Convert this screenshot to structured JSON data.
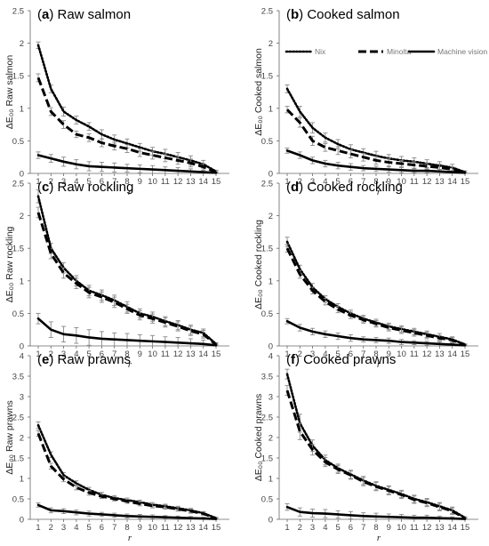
{
  "figure": {
    "xlabel": "r"
  },
  "legend": [
    {
      "name": "Nix",
      "style": "dotted"
    },
    {
      "name": "Minolta",
      "style": "dashed"
    },
    {
      "name": "Machine vision",
      "style": "solid"
    }
  ],
  "chart_data": [
    {
      "type": "line",
      "letter": "a",
      "title_rest": " Raw salmon",
      "ylabel": "ΔE₀₀ Raw salmon",
      "x": [
        1,
        2,
        3,
        4,
        5,
        6,
        7,
        8,
        9,
        10,
        11,
        12,
        13,
        14,
        15
      ],
      "ylim": [
        0,
        2.5
      ],
      "yticks": [
        "0",
        "0.5",
        "1",
        "1.5",
        "2",
        "2.5"
      ],
      "series": [
        {
          "name": "Nix",
          "values": [
            1.97,
            1.3,
            0.95,
            0.82,
            0.72,
            0.6,
            0.52,
            0.46,
            0.4,
            0.34,
            0.3,
            0.25,
            0.2,
            0.14,
            0.03
          ],
          "errors": [
            0.05,
            0.06,
            0.07,
            0.06,
            0.06,
            0.07,
            0.07,
            0.07,
            0.06,
            0.06,
            0.07,
            0.07,
            0.07,
            0.06,
            0.02
          ]
        },
        {
          "name": "Minolta",
          "values": [
            1.47,
            0.95,
            0.75,
            0.6,
            0.55,
            0.47,
            0.42,
            0.38,
            0.32,
            0.28,
            0.24,
            0.2,
            0.16,
            0.1,
            0.02
          ],
          "errors": [
            0.06,
            0.06,
            0.06,
            0.05,
            0.06,
            0.06,
            0.06,
            0.06,
            0.06,
            0.06,
            0.06,
            0.06,
            0.06,
            0.05,
            0.02
          ]
        },
        {
          "name": "Machine vision",
          "values": [
            0.28,
            0.23,
            0.18,
            0.14,
            0.11,
            0.1,
            0.09,
            0.08,
            0.07,
            0.06,
            0.05,
            0.04,
            0.03,
            0.02,
            0.01
          ],
          "errors": [
            0.05,
            0.06,
            0.07,
            0.07,
            0.07,
            0.07,
            0.07,
            0.06,
            0.06,
            0.06,
            0.05,
            0.05,
            0.04,
            0.03,
            0.01
          ]
        }
      ]
    },
    {
      "type": "line",
      "letter": "b",
      "title_rest": " Cooked salmon",
      "ylabel": "ΔE₀₀ Cooked salmon",
      "x": [
        1,
        2,
        3,
        4,
        5,
        6,
        7,
        8,
        9,
        10,
        11,
        12,
        13,
        14,
        15
      ],
      "ylim": [
        0,
        2.5
      ],
      "yticks": [
        "0",
        "0.5",
        "1",
        "1.5",
        "2",
        "2.5"
      ],
      "series": [
        {
          "name": "Nix",
          "values": [
            1.3,
            0.95,
            0.7,
            0.55,
            0.45,
            0.37,
            0.32,
            0.27,
            0.23,
            0.2,
            0.18,
            0.15,
            0.12,
            0.09,
            0.02
          ],
          "errors": [
            0.06,
            0.08,
            0.08,
            0.07,
            0.07,
            0.07,
            0.06,
            0.07,
            0.06,
            0.06,
            0.06,
            0.06,
            0.06,
            0.05,
            0.02
          ]
        },
        {
          "name": "Minolta",
          "values": [
            0.98,
            0.78,
            0.5,
            0.4,
            0.35,
            0.3,
            0.25,
            0.2,
            0.17,
            0.15,
            0.13,
            0.11,
            0.09,
            0.06,
            0.01
          ],
          "errors": [
            0.05,
            0.07,
            0.07,
            0.06,
            0.06,
            0.06,
            0.06,
            0.06,
            0.06,
            0.05,
            0.05,
            0.05,
            0.05,
            0.04,
            0.01
          ]
        },
        {
          "name": "Machine vision",
          "values": [
            0.35,
            0.28,
            0.2,
            0.15,
            0.12,
            0.1,
            0.08,
            0.07,
            0.06,
            0.05,
            0.04,
            0.04,
            0.03,
            0.02,
            0.01
          ],
          "errors": [
            0.04,
            0.05,
            0.05,
            0.05,
            0.05,
            0.05,
            0.04,
            0.04,
            0.04,
            0.04,
            0.03,
            0.03,
            0.03,
            0.02,
            0.01
          ]
        }
      ]
    },
    {
      "type": "line",
      "letter": "c",
      "title_rest": " Raw rockling",
      "ylabel": "ΔE₀₀ Raw rockling",
      "x": [
        1,
        2,
        3,
        4,
        5,
        6,
        7,
        8,
        9,
        10,
        11,
        12,
        13,
        14,
        15
      ],
      "ylim": [
        0,
        2.5
      ],
      "yticks": [
        "0",
        "0.5",
        "1",
        "1.5",
        "2",
        "2.5"
      ],
      "series": [
        {
          "name": "Nix",
          "values": [
            2.3,
            1.5,
            1.2,
            1.0,
            0.85,
            0.78,
            0.7,
            0.6,
            0.5,
            0.45,
            0.38,
            0.32,
            0.25,
            0.2,
            0.03
          ],
          "errors": [
            0.1,
            0.08,
            0.08,
            0.08,
            0.08,
            0.08,
            0.08,
            0.08,
            0.07,
            0.07,
            0.07,
            0.07,
            0.07,
            0.06,
            0.02
          ]
        },
        {
          "name": "Minolta",
          "values": [
            2.05,
            1.42,
            1.12,
            0.96,
            0.82,
            0.75,
            0.67,
            0.57,
            0.47,
            0.42,
            0.36,
            0.3,
            0.23,
            0.18,
            0.02
          ],
          "errors": [
            0.08,
            0.08,
            0.08,
            0.08,
            0.08,
            0.08,
            0.08,
            0.07,
            0.07,
            0.07,
            0.07,
            0.07,
            0.07,
            0.06,
            0.02
          ]
        },
        {
          "name": "Machine vision",
          "values": [
            0.42,
            0.25,
            0.18,
            0.16,
            0.13,
            0.11,
            0.1,
            0.09,
            0.08,
            0.07,
            0.06,
            0.05,
            0.04,
            0.03,
            0.01
          ],
          "errors": [
            0.08,
            0.12,
            0.12,
            0.12,
            0.12,
            0.11,
            0.1,
            0.1,
            0.09,
            0.09,
            0.08,
            0.08,
            0.07,
            0.06,
            0.01
          ]
        }
      ]
    },
    {
      "type": "line",
      "letter": "d",
      "title_rest": " Cooked rockling",
      "ylabel": "ΔE₀₀ Cooked rockling",
      "x": [
        1,
        2,
        3,
        4,
        5,
        6,
        7,
        8,
        9,
        10,
        11,
        12,
        13,
        14,
        15
      ],
      "ylim": [
        0,
        2.5
      ],
      "yticks": [
        "0",
        "0.5",
        "1",
        "1.5",
        "2",
        "2.5"
      ],
      "series": [
        {
          "name": "Nix",
          "values": [
            1.6,
            1.18,
            0.9,
            0.72,
            0.6,
            0.5,
            0.42,
            0.36,
            0.3,
            0.26,
            0.22,
            0.18,
            0.14,
            0.1,
            0.02
          ],
          "errors": [
            0.07,
            0.06,
            0.06,
            0.05,
            0.05,
            0.05,
            0.05,
            0.05,
            0.05,
            0.05,
            0.05,
            0.05,
            0.05,
            0.04,
            0.01
          ]
        },
        {
          "name": "Minolta",
          "values": [
            1.5,
            1.1,
            0.85,
            0.68,
            0.56,
            0.47,
            0.4,
            0.34,
            0.28,
            0.24,
            0.2,
            0.16,
            0.12,
            0.09,
            0.02
          ],
          "errors": [
            0.06,
            0.06,
            0.05,
            0.05,
            0.05,
            0.05,
            0.05,
            0.05,
            0.05,
            0.05,
            0.05,
            0.05,
            0.04,
            0.04,
            0.01
          ]
        },
        {
          "name": "Machine vision",
          "values": [
            0.38,
            0.28,
            0.22,
            0.18,
            0.15,
            0.12,
            0.1,
            0.09,
            0.08,
            0.06,
            0.05,
            0.04,
            0.03,
            0.02,
            0.01
          ],
          "errors": [
            0.04,
            0.05,
            0.05,
            0.05,
            0.05,
            0.05,
            0.04,
            0.04,
            0.04,
            0.04,
            0.03,
            0.03,
            0.03,
            0.02,
            0.01
          ]
        }
      ]
    },
    {
      "type": "line",
      "letter": "e",
      "title_rest": " Raw prawns",
      "ylabel": "ΔE₀₀ Raw prawns",
      "x": [
        1,
        2,
        3,
        4,
        5,
        6,
        7,
        8,
        9,
        10,
        11,
        12,
        13,
        14,
        15
      ],
      "ylim": [
        0,
        4
      ],
      "yticks": [
        "0",
        "0.5",
        "1",
        "1.5",
        "2",
        "2.5",
        "3",
        "3.5",
        "4"
      ],
      "series": [
        {
          "name": "Nix",
          "values": [
            2.3,
            1.58,
            1.08,
            0.88,
            0.72,
            0.6,
            0.52,
            0.47,
            0.42,
            0.36,
            0.32,
            0.27,
            0.22,
            0.15,
            0.03
          ],
          "errors": [
            0.08,
            0.07,
            0.06,
            0.06,
            0.06,
            0.06,
            0.06,
            0.05,
            0.05,
            0.05,
            0.05,
            0.05,
            0.05,
            0.04,
            0.02
          ]
        },
        {
          "name": "Minolta",
          "values": [
            2.1,
            1.3,
            0.98,
            0.78,
            0.65,
            0.56,
            0.5,
            0.44,
            0.38,
            0.33,
            0.3,
            0.25,
            0.2,
            0.14,
            0.02
          ],
          "errors": [
            0.07,
            0.07,
            0.06,
            0.06,
            0.06,
            0.05,
            0.05,
            0.05,
            0.05,
            0.05,
            0.05,
            0.05,
            0.05,
            0.04,
            0.02
          ]
        },
        {
          "name": "Machine vision",
          "values": [
            0.35,
            0.22,
            0.2,
            0.17,
            0.14,
            0.12,
            0.1,
            0.08,
            0.07,
            0.06,
            0.05,
            0.04,
            0.03,
            0.02,
            0.01
          ],
          "errors": [
            0.05,
            0.06,
            0.06,
            0.06,
            0.06,
            0.05,
            0.05,
            0.05,
            0.05,
            0.05,
            0.04,
            0.04,
            0.04,
            0.03,
            0.01
          ]
        }
      ]
    },
    {
      "type": "line",
      "letter": "f",
      "title_rest": " Cooked prawns",
      "ylabel": "ΔE₀₀ Cooked prawns",
      "x": [
        1,
        2,
        3,
        4,
        5,
        6,
        7,
        8,
        9,
        10,
        11,
        12,
        13,
        14,
        15
      ],
      "ylim": [
        0,
        4
      ],
      "yticks": [
        "0",
        "0.5",
        "1",
        "1.5",
        "2",
        "2.5",
        "3",
        "3.5",
        "4"
      ],
      "series": [
        {
          "name": "Nix",
          "values": [
            3.55,
            2.35,
            1.8,
            1.45,
            1.25,
            1.1,
            0.95,
            0.82,
            0.72,
            0.62,
            0.5,
            0.42,
            0.32,
            0.22,
            0.04
          ],
          "errors": [
            0.12,
            0.22,
            0.14,
            0.12,
            0.1,
            0.1,
            0.1,
            0.1,
            0.1,
            0.09,
            0.09,
            0.09,
            0.09,
            0.08,
            0.02
          ]
        },
        {
          "name": "Minolta",
          "values": [
            3.15,
            2.15,
            1.7,
            1.4,
            1.22,
            1.08,
            0.92,
            0.8,
            0.7,
            0.6,
            0.48,
            0.4,
            0.3,
            0.2,
            0.03
          ],
          "errors": [
            0.12,
            0.2,
            0.13,
            0.11,
            0.1,
            0.1,
            0.1,
            0.1,
            0.1,
            0.09,
            0.09,
            0.09,
            0.09,
            0.08,
            0.02
          ]
        },
        {
          "name": "Machine vision",
          "values": [
            0.3,
            0.18,
            0.15,
            0.14,
            0.12,
            0.1,
            0.08,
            0.07,
            0.06,
            0.05,
            0.04,
            0.04,
            0.03,
            0.02,
            0.01
          ],
          "errors": [
            0.08,
            0.1,
            0.1,
            0.1,
            0.09,
            0.09,
            0.08,
            0.08,
            0.07,
            0.07,
            0.06,
            0.06,
            0.05,
            0.04,
            0.01
          ]
        }
      ]
    }
  ]
}
